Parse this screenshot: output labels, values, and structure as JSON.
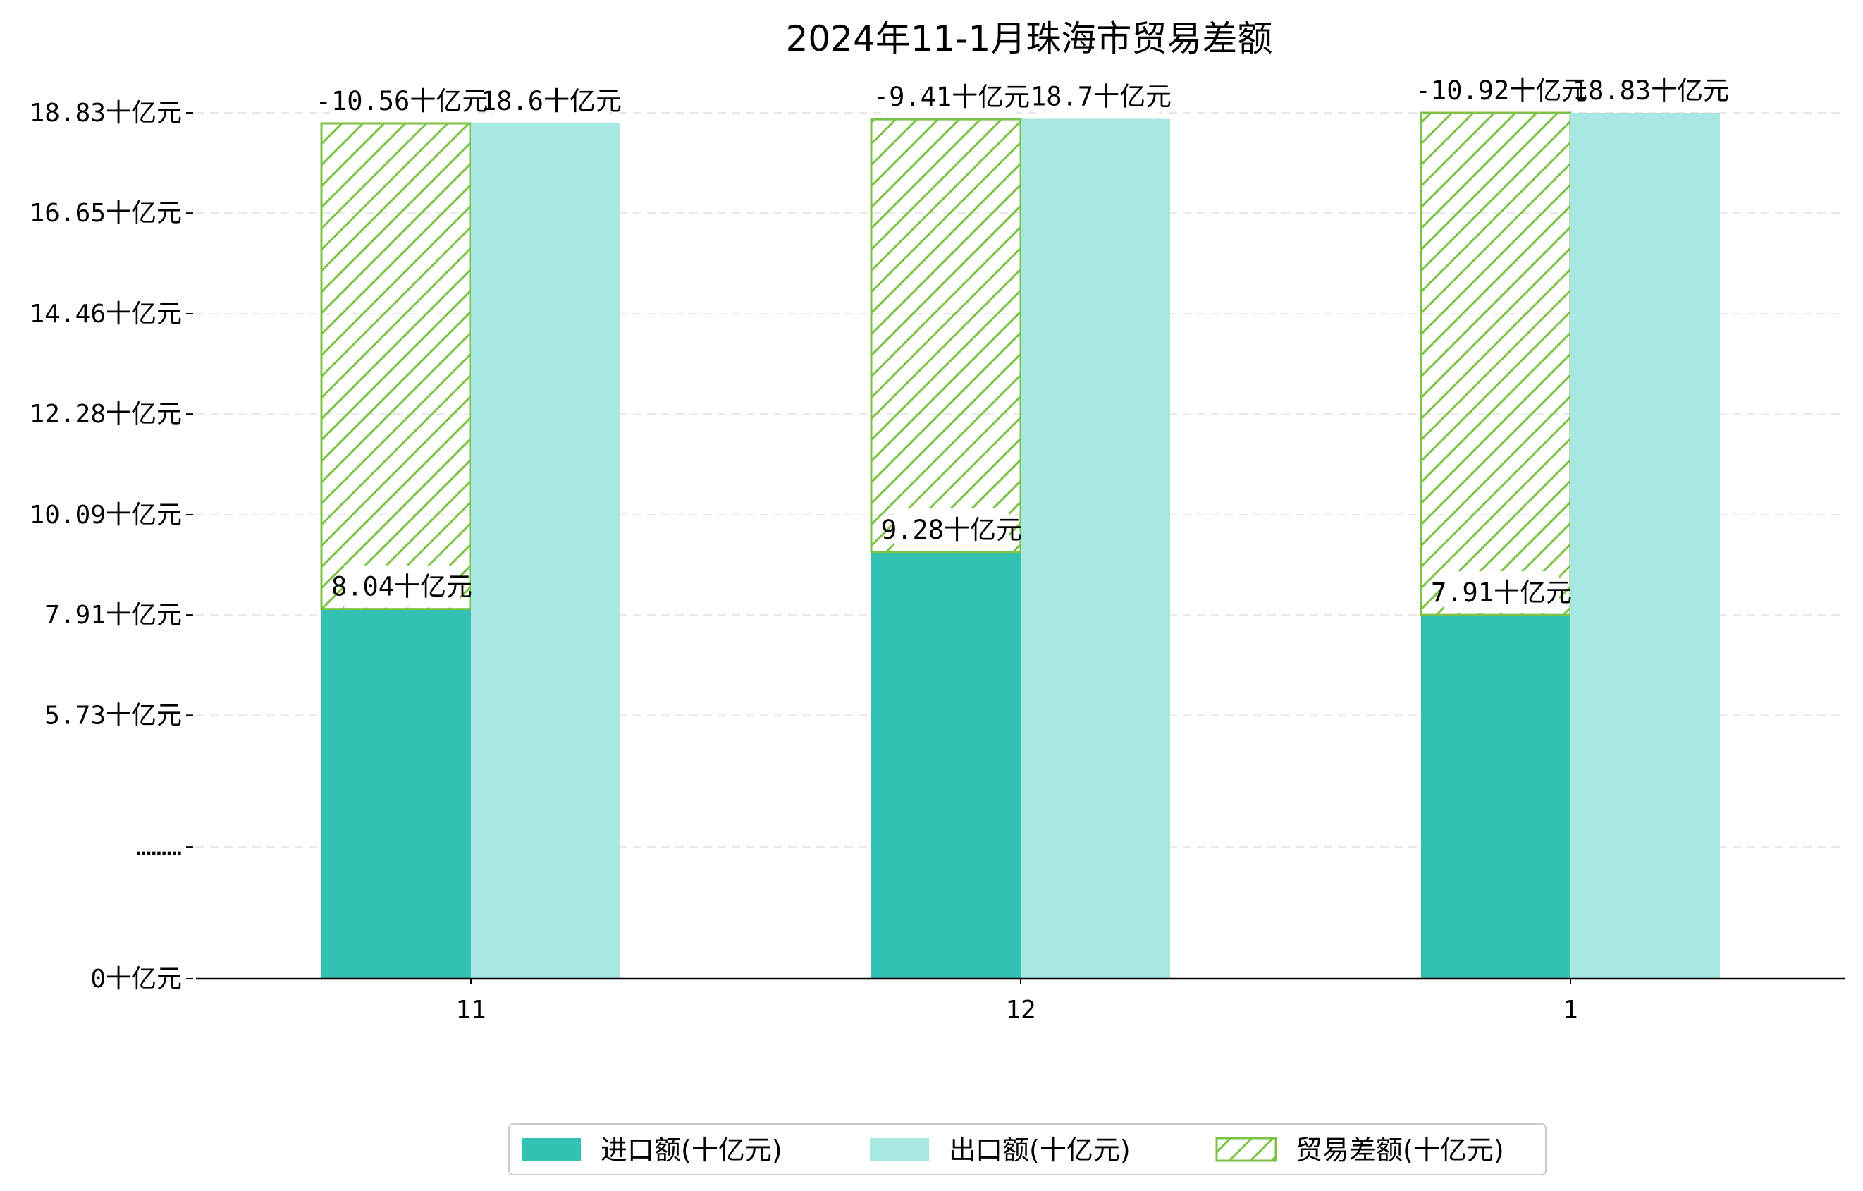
{
  "chart_data": {
    "type": "bar",
    "title": "2024年11-1月珠海市贸易差额",
    "categories": [
      "11",
      "12",
      "1"
    ],
    "series": [
      {
        "name": "进口额(十亿元)",
        "color": "#32c1b3",
        "values": [
          8.04,
          9.28,
          7.91
        ],
        "labels": [
          "8.04十亿元",
          "9.28十亿元",
          "7.91十亿元"
        ]
      },
      {
        "name": "出口额(十亿元)",
        "color": "#a8e8e2",
        "values": [
          18.6,
          18.7,
          18.83
        ],
        "labels": [
          "18.6十亿元",
          "18.7十亿元",
          "18.83十亿元"
        ]
      },
      {
        "name": "贸易差额(十亿元)",
        "color": "#7cc244",
        "values": [
          -10.56,
          -9.41,
          -10.92
        ],
        "labels": [
          "-10.56十亿元",
          "-9.41十亿元",
          "-10.92十亿元"
        ],
        "hatch": true,
        "stacked_on": "进口额(十亿元)"
      }
    ],
    "yticks": [
      0,
      5.73,
      7.91,
      10.09,
      12.28,
      14.46,
      16.65,
      18.83
    ],
    "ytick_labels": [
      "0十亿元",
      "5.73十亿元",
      "7.91十亿元",
      "10.09十亿元",
      "12.28十亿元",
      "14.46十亿元",
      "16.65十亿元",
      "18.83十亿元"
    ],
    "axis_break_label": "………",
    "ylim": [
      0,
      18.83
    ],
    "grid": true,
    "legend_position": "bottom"
  }
}
